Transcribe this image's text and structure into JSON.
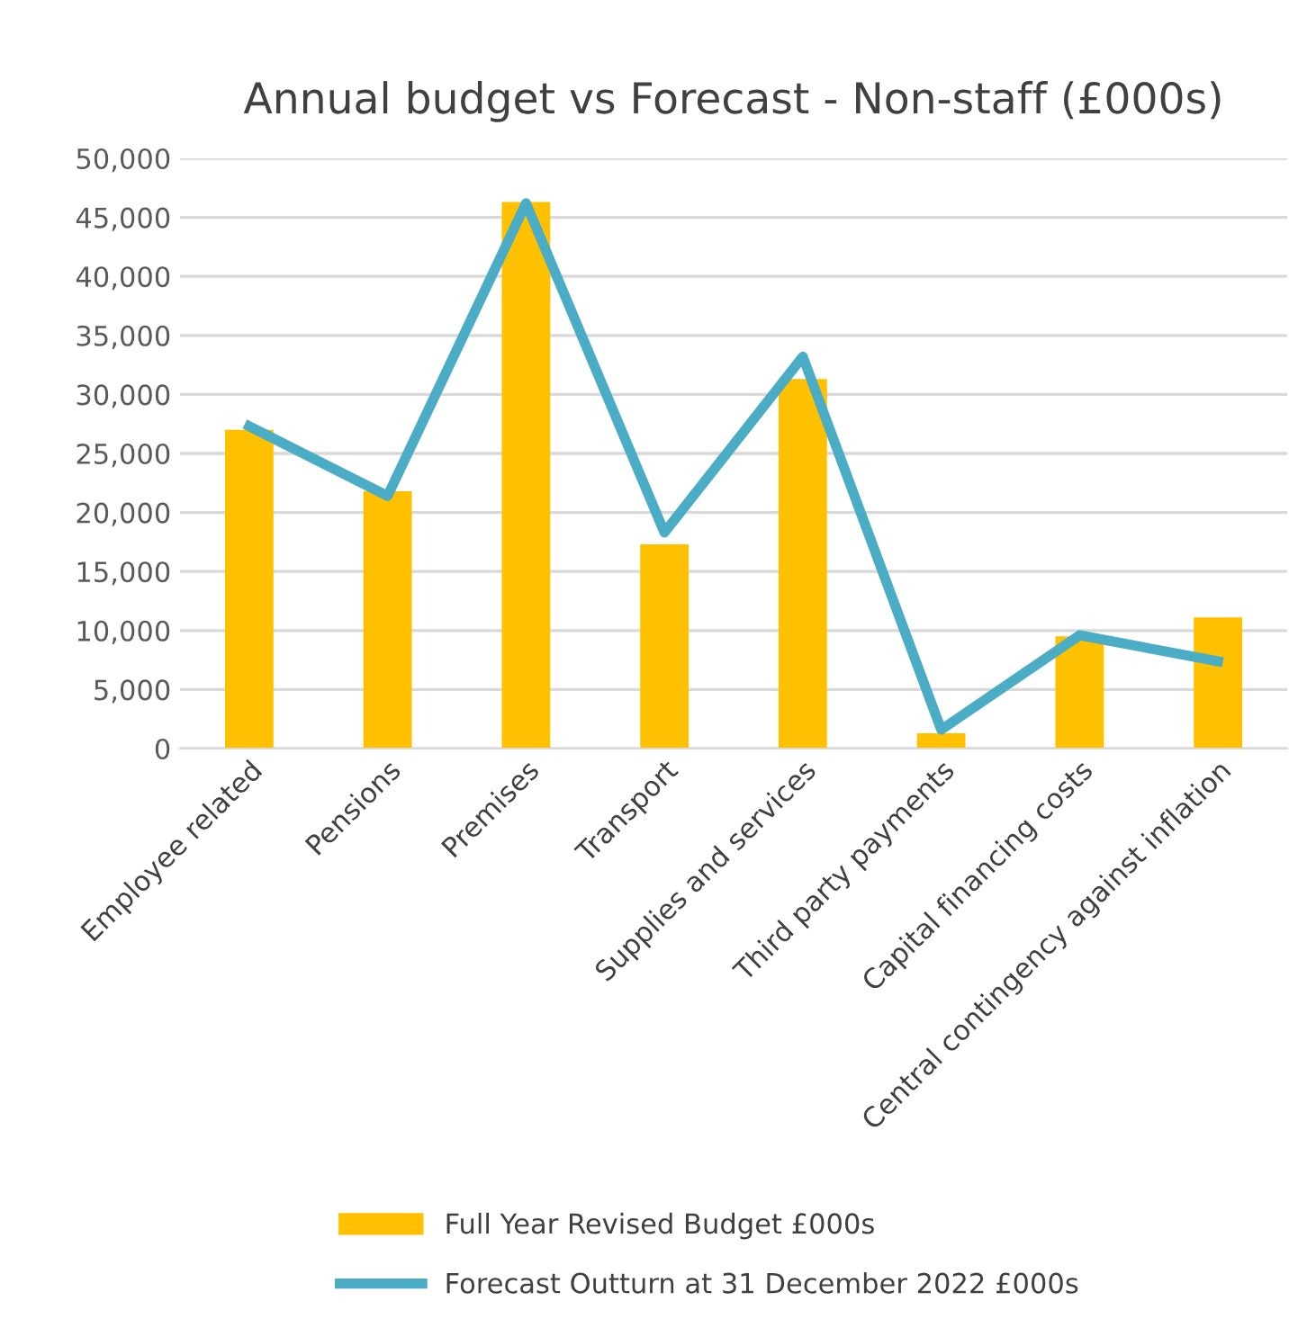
{
  "chart_data": {
    "type": "bar",
    "title": "Annual budget vs Forecast - Non-staff (£000s)",
    "categories": [
      "Employee related",
      "Pensions",
      "Premises",
      "Transport",
      "Supplies and services",
      "Third party payments",
      "Capital financing costs",
      "Central contingency against inflation"
    ],
    "series": [
      {
        "name": "Full Year Revised Budget £000s",
        "color": "#ffc000",
        "values": [
          27000,
          21800,
          46300,
          17300,
          31300,
          1300,
          9500,
          11100
        ]
      },
      {
        "name": "Forecast Outturn at 31 December 2022 £000s",
        "type": "line",
        "color": "#4bacc6",
        "values": [
          27300,
          21400,
          46200,
          18300,
          33200,
          1600,
          9600,
          7400
        ]
      }
    ],
    "ylim": [
      0,
      50000
    ],
    "yticks": [
      {
        "value": 0,
        "label": "0"
      },
      {
        "value": 5000,
        "label": "5,000"
      },
      {
        "value": 10000,
        "label": "10,000"
      },
      {
        "value": 15000,
        "label": "15,000"
      },
      {
        "value": 20000,
        "label": "20,000"
      },
      {
        "value": 25000,
        "label": "25,000"
      },
      {
        "value": 30000,
        "label": "30,000"
      },
      {
        "value": 35000,
        "label": "35,000"
      },
      {
        "value": 40000,
        "label": "40,000"
      },
      {
        "value": 45000,
        "label": "45,000"
      },
      {
        "value": 50000,
        "label": "50,000"
      }
    ],
    "grid": "y",
    "legend": "bottom",
    "marker": "none"
  }
}
